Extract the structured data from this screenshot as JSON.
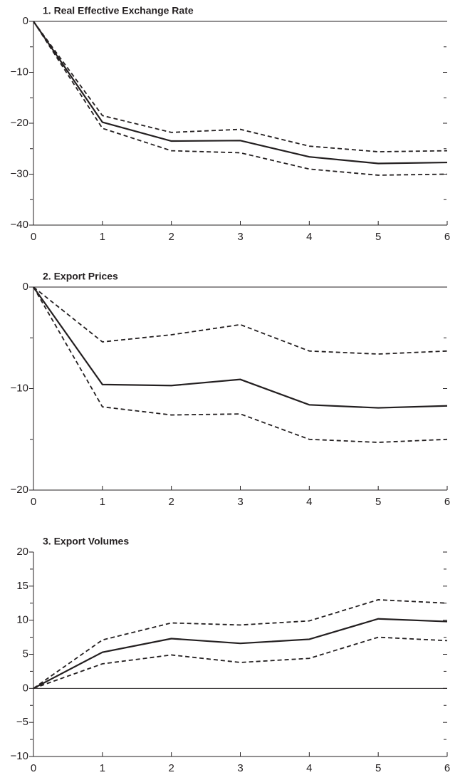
{
  "chart_data": [
    {
      "type": "line",
      "title": "1. Real Effective Exchange Rate",
      "x": [
        0,
        1,
        2,
        3,
        4,
        5,
        6
      ],
      "xlim": [
        0,
        6
      ],
      "xticks": [
        0,
        1,
        2,
        3,
        4,
        5,
        6
      ],
      "ylim": [
        -40,
        0
      ],
      "yticks": [
        0,
        {
          "value": -10,
          "label": "−10"
        },
        {
          "value": -20,
          "label": "−20"
        },
        {
          "value": -30,
          "label": "−30"
        },
        {
          "value": -40,
          "label": "−40"
        }
      ],
      "minor_yticks": [
        -5,
        -15,
        -25,
        -35
      ],
      "series": [
        {
          "style": "dashed",
          "color": "#231f20",
          "values": [
            0,
            -18.5,
            -21.8,
            -21.2,
            -24.5,
            -25.6,
            -25.4
          ]
        },
        {
          "style": "solid",
          "color": "#231f20",
          "values": [
            0,
            -19.8,
            -23.5,
            -23.4,
            -26.6,
            -27.9,
            -27.7
          ]
        },
        {
          "style": "dashed",
          "color": "#231f20",
          "values": [
            0,
            -21.0,
            -25.4,
            -25.8,
            -29.0,
            -30.2,
            -30.0
          ]
        }
      ]
    },
    {
      "type": "line",
      "title": "2. Export Prices",
      "x": [
        0,
        1,
        2,
        3,
        4,
        5,
        6
      ],
      "xlim": [
        0,
        6
      ],
      "xticks": [
        0,
        1,
        2,
        3,
        4,
        5,
        6
      ],
      "ylim": [
        -20,
        0
      ],
      "yticks": [
        0,
        {
          "value": -10,
          "label": "−10"
        },
        {
          "value": -20,
          "label": "−20"
        }
      ],
      "minor_yticks": [
        -5,
        -15
      ],
      "series": [
        {
          "style": "dashed",
          "color": "#231f20",
          "values": [
            0,
            -5.4,
            -4.7,
            -3.7,
            -6.3,
            -6.6,
            -6.3
          ]
        },
        {
          "style": "solid",
          "color": "#231f20",
          "values": [
            0,
            -9.6,
            -9.7,
            -9.1,
            -11.6,
            -11.9,
            -11.7
          ]
        },
        {
          "style": "dashed",
          "color": "#231f20",
          "values": [
            0,
            -11.8,
            -12.6,
            -12.5,
            -15.0,
            -15.3,
            -15.0
          ]
        }
      ]
    },
    {
      "type": "line",
      "title": "3. Export Volumes",
      "x": [
        0,
        1,
        2,
        3,
        4,
        5,
        6
      ],
      "xlim": [
        0,
        6
      ],
      "xticks": [
        0,
        1,
        2,
        3,
        4,
        5,
        6
      ],
      "ylim": [
        -10,
        20
      ],
      "yticks": [
        20,
        15,
        10,
        5,
        0,
        {
          "value": -5,
          "label": "−5"
        },
        {
          "value": -10,
          "label": "−10"
        }
      ],
      "minor_yticks": [
        17.5,
        12.5,
        7.5,
        2.5,
        -2.5,
        -7.5
      ],
      "series": [
        {
          "style": "dashed",
          "color": "#231f20",
          "values": [
            0,
            7.1,
            9.6,
            9.3,
            9.9,
            13.0,
            12.5
          ]
        },
        {
          "style": "solid",
          "color": "#231f20",
          "values": [
            0,
            5.3,
            7.3,
            6.6,
            7.2,
            10.2,
            9.8
          ]
        },
        {
          "style": "dashed",
          "color": "#231f20",
          "values": [
            0,
            3.6,
            4.9,
            3.8,
            4.4,
            7.5,
            7.0
          ]
        }
      ]
    }
  ]
}
